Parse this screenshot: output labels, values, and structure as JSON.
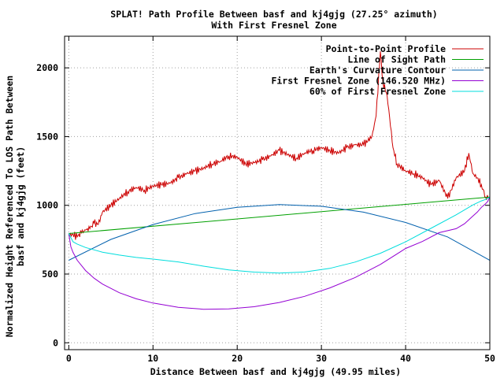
{
  "chart_data": {
    "type": "line",
    "title": "SPLAT! Path Profile Between basf and kj4gjg (27.25° azimuth)",
    "subtitle": "With First Fresnel Zone",
    "xlabel": "Distance Between basf and kj4gjg (49.95 miles)",
    "ylabel_line1": "Normalized Height Referenced To LOS Path Between",
    "ylabel_line2": "basf and kj4gjg (feet)",
    "xlim": [
      -0.5,
      50
    ],
    "ylim": [
      -50,
      2230
    ],
    "x_ticks": [
      0,
      10,
      20,
      30,
      40,
      50
    ],
    "y_ticks": [
      0,
      500,
      1000,
      1500,
      2000
    ],
    "grid": true,
    "legend_position": "top-right",
    "series": [
      {
        "name": "Point-to-Point Profile",
        "color": "#cc0000",
        "x": [
          0,
          0.5,
          1,
          1.5,
          2,
          2.5,
          3,
          3.5,
          4,
          5,
          6,
          7,
          8,
          9,
          10,
          11,
          12,
          13,
          14,
          15,
          16,
          17,
          18,
          19,
          20,
          21,
          22,
          23,
          24,
          25,
          26,
          27,
          28,
          29,
          30,
          31,
          32,
          33,
          34,
          35,
          36,
          36.5,
          37,
          37.3,
          37.8,
          38.5,
          39,
          40,
          41,
          42,
          43,
          44,
          45,
          46,
          47,
          47.5,
          48,
          48.5,
          49,
          49.5,
          50
        ],
        "values": [
          780,
          790,
          770,
          800,
          820,
          830,
          870,
          860,
          950,
          1000,
          1050,
          1100,
          1130,
          1110,
          1140,
          1150,
          1160,
          1200,
          1230,
          1250,
          1270,
          1300,
          1320,
          1360,
          1350,
          1300,
          1310,
          1330,
          1360,
          1400,
          1370,
          1340,
          1380,
          1400,
          1420,
          1400,
          1380,
          1420,
          1440,
          1440,
          1500,
          1650,
          2120,
          1900,
          1800,
          1420,
          1300,
          1250,
          1230,
          1200,
          1150,
          1180,
          1050,
          1200,
          1250,
          1380,
          1230,
          1200,
          1150,
          1060,
          1060
        ]
      },
      {
        "name": "Line of Sight Path",
        "color": "#00a000",
        "x": [
          0,
          50
        ],
        "values": [
          795,
          1060
        ]
      },
      {
        "name": "Earth's Curvature Contour",
        "color": "#0060ad",
        "x": [
          0,
          5,
          10,
          15,
          20,
          25,
          30,
          35,
          40,
          45,
          50
        ],
        "values": [
          600,
          752,
          860,
          940,
          985,
          1005,
          993,
          950,
          875,
          770,
          600
        ]
      },
      {
        "name": "First Fresnel Zone (146.520 MHz)",
        "color": "#9400d3",
        "x": [
          0,
          0.25,
          0.5,
          1,
          2,
          3,
          4,
          6,
          8,
          10,
          13,
          16,
          19,
          22,
          25,
          28,
          31,
          34,
          37,
          40,
          42,
          44,
          46,
          47,
          48,
          48.5,
          49,
          49.5,
          49.75,
          50
        ],
        "values": [
          795,
          698,
          658,
          601,
          525,
          470,
          427,
          364,
          320,
          289,
          258,
          244,
          246,
          262,
          293,
          338,
          399,
          475,
          570,
          686,
          737,
          801,
          830,
          866,
          923,
          950,
          985,
          1012,
          1028,
          1060
        ]
      },
      {
        "name": "60% of First Fresnel Zone",
        "color": "#00dddd",
        "x": [
          0,
          0.5,
          1,
          2,
          4,
          6,
          8,
          10,
          13,
          16,
          19,
          22,
          25,
          28,
          31,
          34,
          37,
          40,
          43,
          46,
          48,
          49,
          49.5,
          50
        ],
        "values": [
          795,
          735,
          718,
          693,
          659,
          638,
          621,
          609,
          588,
          557,
          530,
          514,
          507,
          515,
          541,
          587,
          651,
          734,
          832,
          931,
          1003,
          1032,
          1043,
          1060
        ]
      }
    ]
  }
}
